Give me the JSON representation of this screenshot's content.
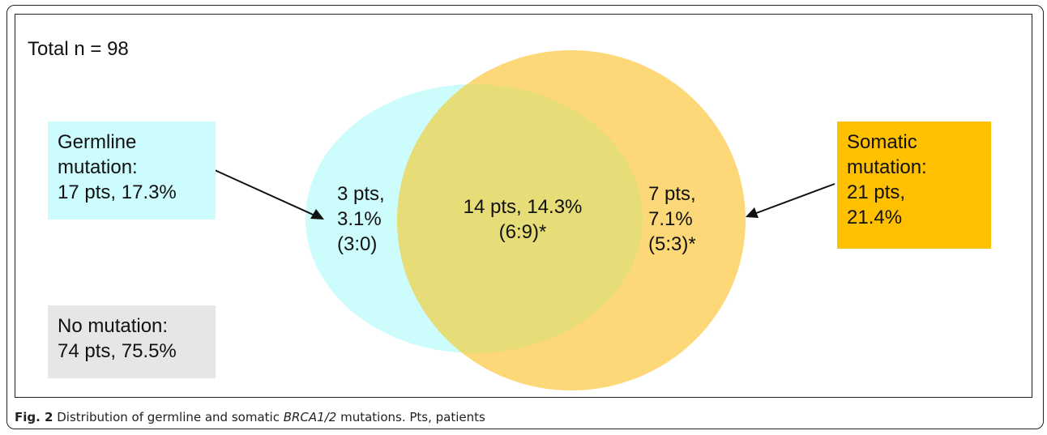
{
  "total_label": "Total n = 98",
  "germline_box": {
    "line1": "Germline",
    "line2": "mutation:",
    "line3": "17 pts, 17.3%",
    "color": "#ccfcfd"
  },
  "somatic_box": {
    "line1": "Somatic",
    "line2": "mutation:",
    "line3": "21 pts,",
    "line4": "21.4%",
    "color": "#ffc000"
  },
  "no_mutation_box": {
    "line1": "No mutation:",
    "line2": "74 pts, 75.5%",
    "color": "#e6e6e6"
  },
  "venn": {
    "germline_only": {
      "line1": "3 pts,",
      "line2": "3.1%",
      "line3": "(3:0)"
    },
    "overlap": {
      "line1": "14 pts, 14.3%",
      "line2": "(6:9)*"
    },
    "somatic_only": {
      "line1": "7 pts,",
      "line2": "7.1%",
      "line3": "(5:3)*"
    },
    "colors": {
      "germline": "#cdfcfd",
      "somatic": "#fdd878",
      "overlap": "#e6dc78"
    }
  },
  "caption": {
    "fig_label": "Fig. 2",
    "text_before": " Distribution of germline and somatic ",
    "gene": "BRCA1/2",
    "text_after": " mutations. Pts, patients"
  }
}
